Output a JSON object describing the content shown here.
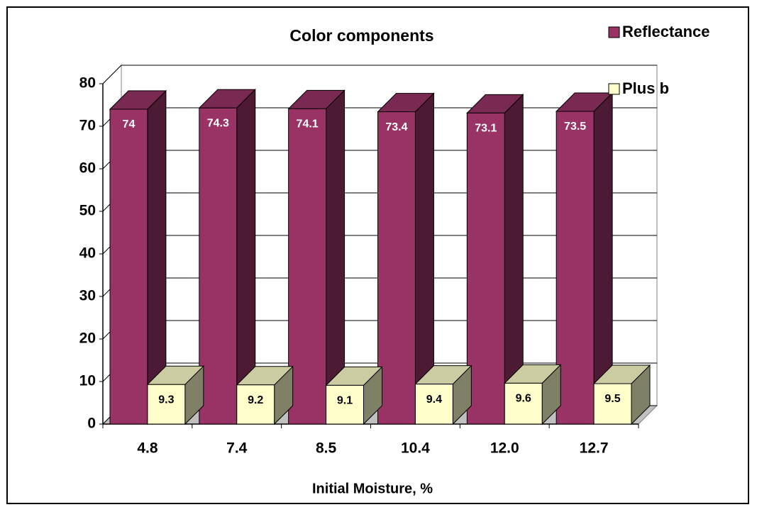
{
  "chart_data": {
    "type": "bar3d",
    "title": "Color components",
    "x_label": "Initial Moisture, %",
    "categories": [
      "4.8",
      "7.4",
      "8.5",
      "10.4",
      "12.0",
      "12.7"
    ],
    "series": [
      {
        "name": "Reflectance",
        "color": "#993366",
        "values": [
          74,
          74.3,
          74.1,
          73.4,
          73.1,
          73.5
        ]
      },
      {
        "name": "Plus b",
        "color": "#ffffcc",
        "values": [
          9.3,
          9.2,
          9.1,
          9.4,
          9.6,
          9.5
        ]
      }
    ],
    "ylim": [
      0,
      80
    ],
    "yticks": [
      0,
      10,
      20,
      30,
      40,
      50,
      60,
      70,
      80
    ],
    "grid": true,
    "legend": "top-right"
  }
}
